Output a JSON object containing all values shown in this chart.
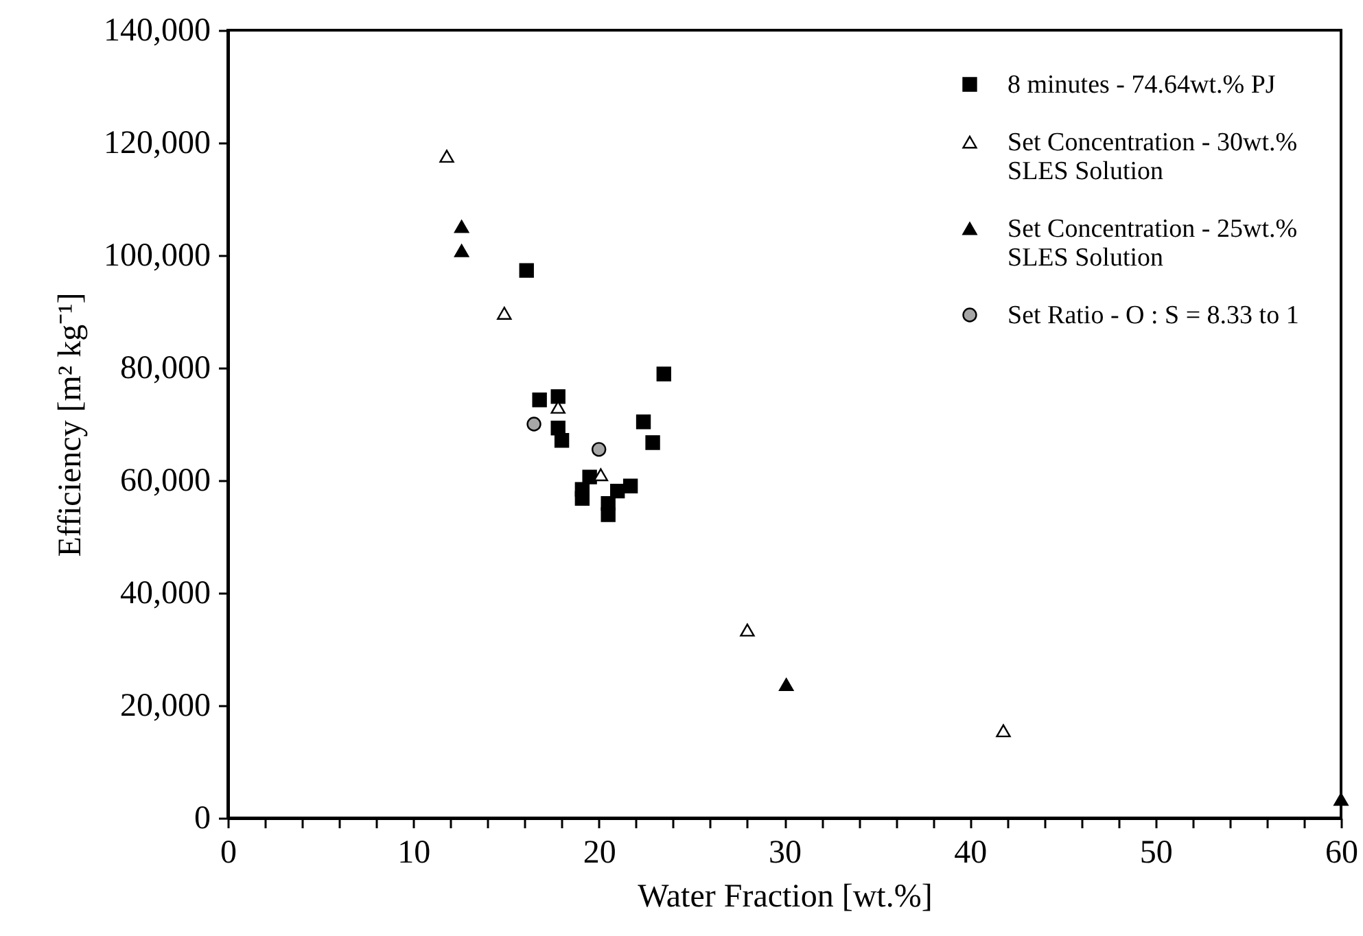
{
  "chart_data": {
    "type": "scatter",
    "xlabel": "Water Fraction [wt.%]",
    "ylabel": "Efficiency [m² kg⁻¹]",
    "xlim": [
      0,
      60
    ],
    "xticks": [
      0,
      {
        "value": 2,
        "label": null
      },
      {
        "value": 4,
        "label": null
      },
      {
        "value": 6,
        "label": null
      },
      {
        "value": 8,
        "label": null
      },
      10,
      {
        "value": 12,
        "label": null
      },
      {
        "value": 14,
        "label": null
      },
      {
        "value": 16,
        "label": null
      },
      {
        "value": 18,
        "label": null
      },
      20,
      {
        "value": 22,
        "label": null
      },
      {
        "value": 24,
        "label": null
      },
      {
        "value": 26,
        "label": null
      },
      {
        "value": 28,
        "label": null
      },
      30,
      {
        "value": 32,
        "label": null
      },
      {
        "value": 34,
        "label": null
      },
      {
        "value": 36,
        "label": null
      },
      {
        "value": 38,
        "label": null
      },
      40,
      {
        "value": 42,
        "label": null
      },
      {
        "value": 44,
        "label": null
      },
      {
        "value": 46,
        "label": null
      },
      {
        "value": 48,
        "label": null
      },
      50,
      {
        "value": 52,
        "label": null
      },
      {
        "value": 54,
        "label": null
      },
      {
        "value": 56,
        "label": null
      },
      {
        "value": 58,
        "label": null
      },
      60
    ],
    "ylim": [
      0,
      140000
    ],
    "yticks": [
      0,
      {
        "value": 20000,
        "label": "20,000"
      },
      {
        "value": 40000,
        "label": "40,000"
      },
      {
        "value": 60000,
        "label": "60,000"
      },
      {
        "value": 80000,
        "label": "80,000"
      },
      {
        "value": 100000,
        "label": "100,000"
      },
      {
        "value": 120000,
        "label": "120,000"
      },
      {
        "value": 140000,
        "label": "140,000"
      }
    ],
    "grid": false,
    "legend": "top right",
    "series": [
      {
        "name": "8 minutes - 74.64wt.% PJ",
        "color": "#000000",
        "marker": "square",
        "x": [
          16.1,
          23.5,
          16.8,
          17.8,
          22.4,
          22.9,
          17.8,
          18.0,
          19.5,
          19.1,
          19.1,
          21.0,
          21.7,
          20.5,
          20.5
        ],
        "values": [
          97300,
          78900,
          74300,
          74900,
          70400,
          66700,
          69300,
          67100,
          60600,
          58400,
          56800,
          58100,
          59000,
          55900,
          53900
        ]
      },
      {
        "name": "Set Concentration - 30wt.% SLES Solution",
        "color": "#ffffff",
        "marker": "triangle",
        "x": [
          11.8,
          14.9,
          17.8,
          20.1,
          28.0,
          41.8
        ],
        "values": [
          117600,
          89700,
          73000,
          61000,
          33400,
          15500
        ]
      },
      {
        "name": "Set Concentration - 25wt.% SLES Solution",
        "color": "#000000",
        "marker": "triangle",
        "x": [
          12.6,
          12.6,
          30.1,
          60
        ],
        "values": [
          105100,
          100800,
          23700,
          3300
        ]
      },
      {
        "name": "Set Ratio - O : S = 8.33 to 1",
        "color": "#a6a6a6",
        "marker": "circle",
        "x": [
          16.5,
          20.0
        ],
        "values": [
          70000,
          65500
        ]
      }
    ]
  }
}
